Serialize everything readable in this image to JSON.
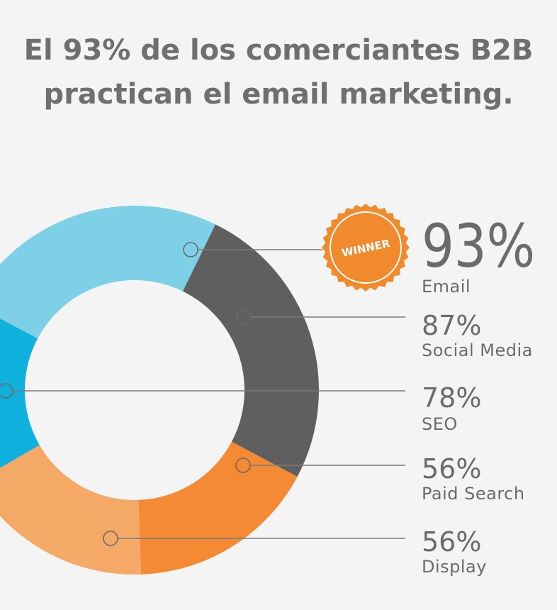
{
  "title": {
    "line1": "El 93% de los comerciantes B2B",
    "line2": "practican el email marketing."
  },
  "badge": {
    "label": "WINNER",
    "color": "#f08a2c"
  },
  "chart_data": {
    "type": "pie",
    "variant": "donut",
    "categories": [
      "Email",
      "Social Media",
      "SEO",
      "Paid Search",
      "Display"
    ],
    "values": [
      93,
      87,
      78,
      56,
      56
    ],
    "labels": [
      "93%",
      "87%",
      "78%",
      "56%",
      "56%"
    ],
    "colors": [
      "#7dd0e6",
      "#5f5f5f",
      "#0fb0dc",
      "#f48a33",
      "#f5a966"
    ],
    "winner": "Email",
    "winner_color": "#f39124",
    "text_color": "#6b6b6b"
  }
}
